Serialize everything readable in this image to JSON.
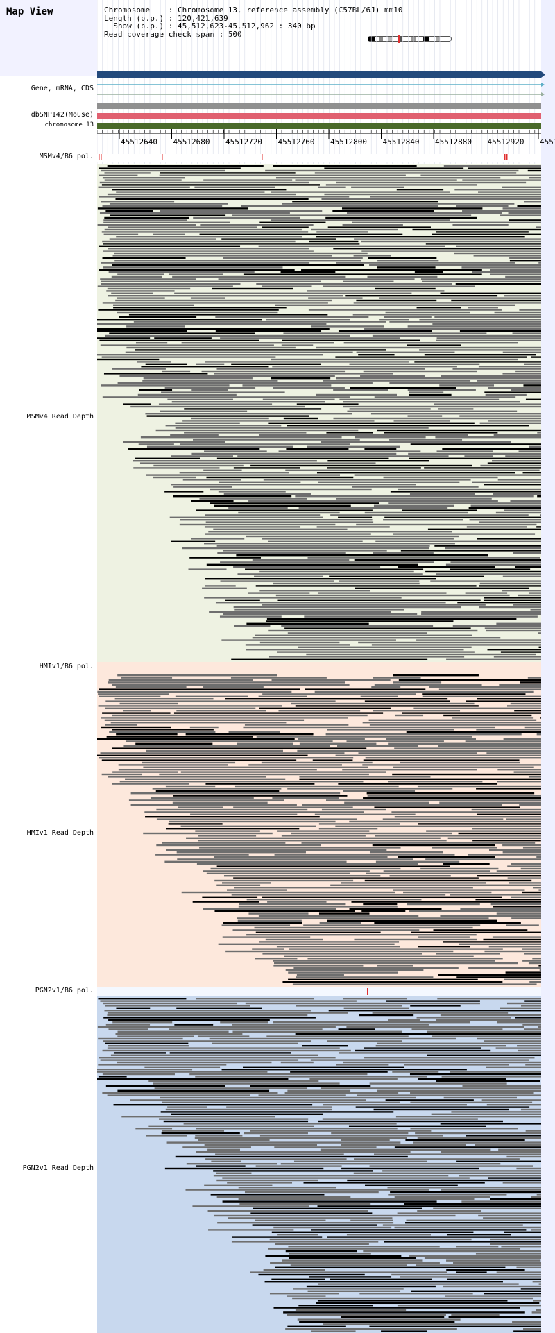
{
  "header": {
    "title": "Map View",
    "chromosome_line": "Chromosome    : Chromosome 13, reference assembly (C57BL/6J) mm10",
    "length_line": "Length (b.p.) : 120,421,639",
    "show_line": "  Show (b.p.) : 45,512,623-45,512,962 : 340 bp",
    "coverage_line": "Read coverage check span : 500"
  },
  "tracks": {
    "gene": "Gene, mRNA, CDS",
    "dbsnp": "dbSNP142(Mouse)",
    "chromosome": "chromosome 13",
    "msm_pol": "MSMv4/B6 pol.",
    "msm_depth": "MSMv4 Read Depth",
    "hmi_pol": "HMIv1/B6 pol.",
    "hmi_depth": "HMIv1 Read Depth",
    "pgn_pol": "PGN2v1/B6 pol.",
    "pgn_depth": "PGN2v1 Read Depth"
  },
  "ruler": {
    "ticks": [
      "45512640",
      "45512680",
      "45512720",
      "45512760",
      "45512800",
      "45512840",
      "45512880",
      "45512920",
      "4551"
    ]
  },
  "colors": {
    "gene_bar": "#234a7c",
    "dbsnp_bar": "#e06070",
    "chromosome_bar": "#4a6a2a",
    "grey_bar": "#909090",
    "msm_bg": "#eef2e2",
    "hmi_bg": "#fde8dc",
    "pgn_bg": "#c8d8ee",
    "read_dark": "#000000",
    "read_mid": "#6e6e6e",
    "snp_mark": "#e03030"
  }
}
